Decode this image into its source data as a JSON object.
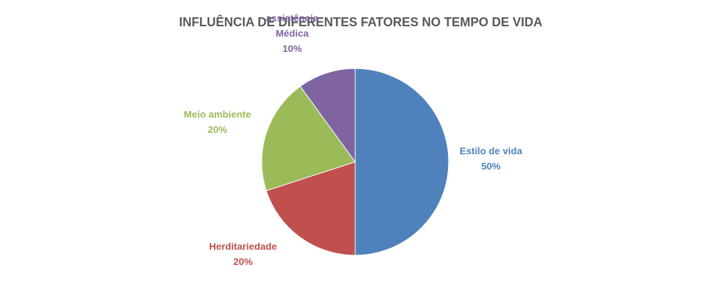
{
  "chart_data": {
    "type": "pie",
    "title": "INFLUÊNCIA DE DIFERENTES FATORES NO TEMPO DE VIDA",
    "slices": [
      {
        "label": [
          "Estilo de vida"
        ],
        "value": 50,
        "value_label": "50%",
        "color": "#4F81BD"
      },
      {
        "label": [
          "Herditariedade"
        ],
        "value": 20,
        "value_label": "20%",
        "color": "#C0504D"
      },
      {
        "label": [
          "Meio ambiente"
        ],
        "value": 20,
        "value_label": "20%",
        "color": "#9BBB59"
      },
      {
        "label": [
          "assistência",
          "Médica"
        ],
        "value": 10,
        "value_label": "10%",
        "color": "#8064A2"
      }
    ]
  }
}
